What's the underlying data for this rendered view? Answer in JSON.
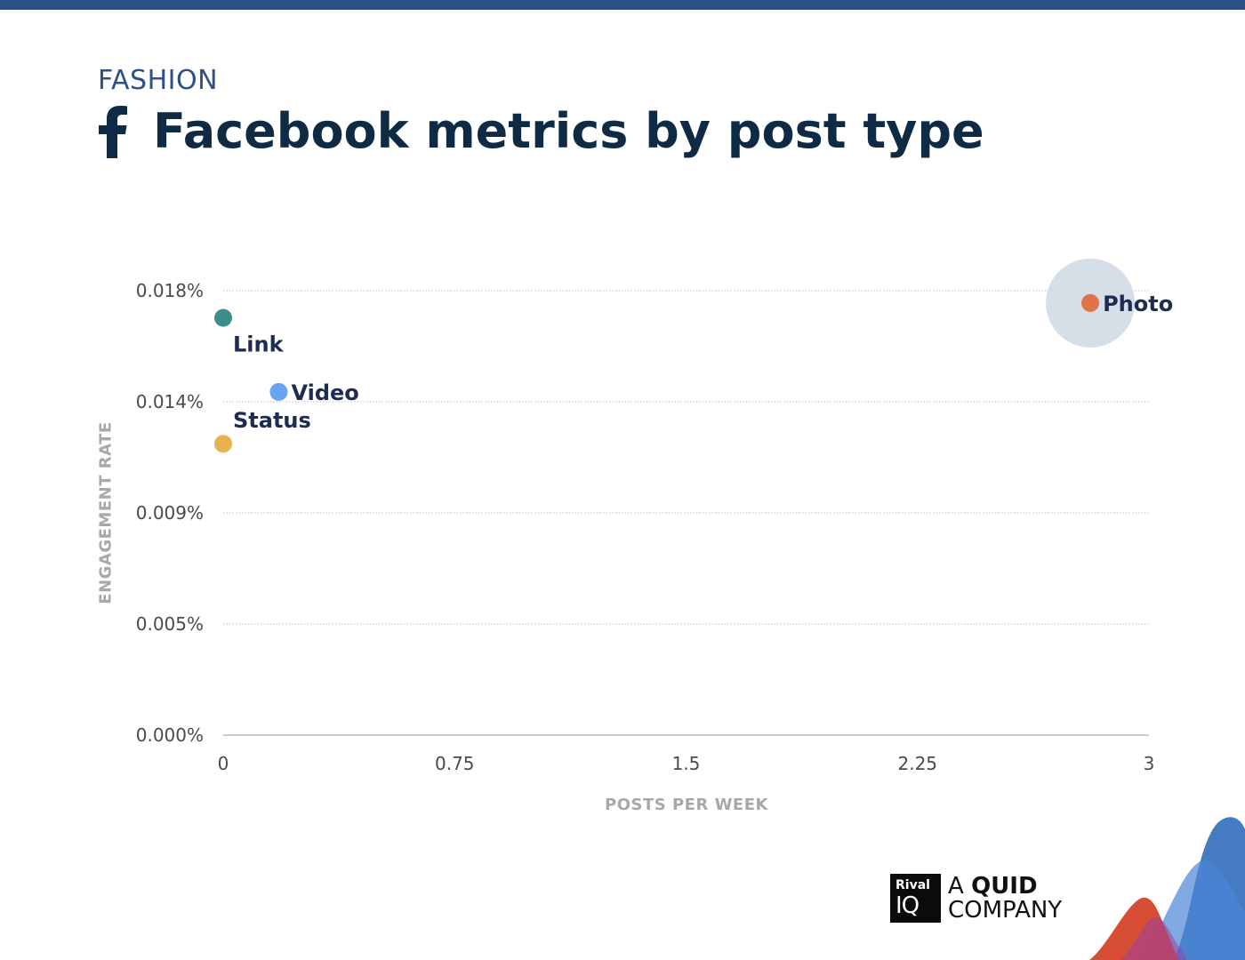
{
  "header": {
    "category": "FASHION",
    "title": "Facebook metrics by post type",
    "icon": "facebook-icon"
  },
  "chart_data": {
    "type": "scatter",
    "title": "Facebook metrics by post type",
    "subtitle": "FASHION",
    "xlabel": "POSTS PER WEEK",
    "ylabel": "ENGAGEMENT RATE",
    "xlim": [
      0,
      3
    ],
    "ylim": [
      0,
      0.018
    ],
    "x_ticks": [
      {
        "value": 0,
        "label": "0"
      },
      {
        "value": 0.75,
        "label": "0.75"
      },
      {
        "value": 1.5,
        "label": "1.5"
      },
      {
        "value": 2.25,
        "label": "2.25"
      },
      {
        "value": 3,
        "label": "3"
      }
    ],
    "y_ticks": [
      {
        "value": 0,
        "label": "0.000%"
      },
      {
        "value": 0.0045,
        "label": "0.005%"
      },
      {
        "value": 0.009,
        "label": "0.009%"
      },
      {
        "value": 0.0135,
        "label": "0.014%"
      },
      {
        "value": 0.018,
        "label": "0.018%"
      }
    ],
    "grid": true,
    "points": [
      {
        "label": "Link",
        "x": 0.0,
        "y": 0.0169,
        "color": "#3d8d8c"
      },
      {
        "label": "Video",
        "x": 0.18,
        "y": 0.0139,
        "color": "#6aa3f0"
      },
      {
        "label": "Status",
        "x": 0.0,
        "y": 0.0118,
        "color": "#e8b24f"
      },
      {
        "label": "Photo",
        "x": 2.81,
        "y": 0.0175,
        "color": "#e27247",
        "highlight": true
      }
    ],
    "colors": {
      "grid": "#bfbfbf",
      "axis": "#bdbdbd",
      "tick_text": "#4a4a4a",
      "point_label": "#1e2c52",
      "highlight": "#d2dae4"
    }
  },
  "brand": {
    "logo_small": "Rival",
    "logo_large": "IQ",
    "line1_prefix": "A ",
    "line1_bold": "QUID",
    "line2": "COMPANY"
  }
}
